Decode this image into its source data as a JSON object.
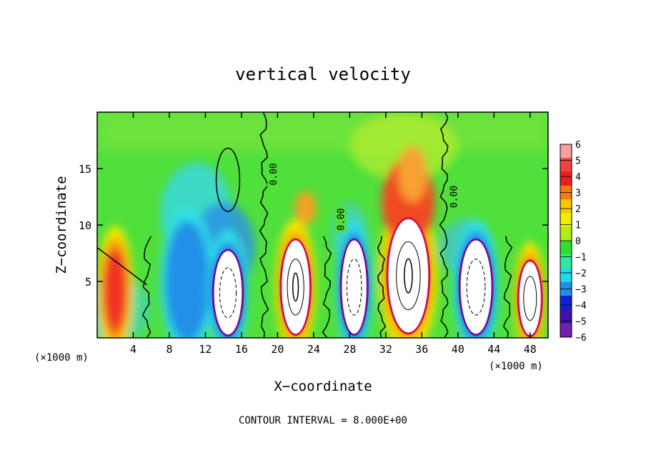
{
  "chart_data": {
    "type": "heatmap",
    "title": "vertical velocity",
    "xlabel": "X−coordinate",
    "ylabel": "Z−coordinate",
    "x_unit_label": "(×1000 m)",
    "z_unit_label": "(×1000 m)",
    "footnote": "CONTOUR INTERVAL = 8.000E+00",
    "xlim": [
      0,
      50
    ],
    "ylim": [
      0,
      20
    ],
    "x_ticks": [
      "4",
      "8",
      "12",
      "16",
      "20",
      "24",
      "28",
      "32",
      "36",
      "40",
      "44",
      "48"
    ],
    "x_tick_values": [
      4,
      8,
      12,
      16,
      20,
      24,
      28,
      32,
      36,
      40,
      44,
      48
    ],
    "y_ticks": [
      "5",
      "10",
      "15"
    ],
    "y_tick_values": [
      5,
      10,
      15
    ],
    "contour_labels": [
      {
        "text": "0.00",
        "x": 19.5,
        "z": 14.5,
        "rotation": -90
      },
      {
        "text": "0.00",
        "x": 27.0,
        "z": 10.5,
        "rotation": -90
      },
      {
        "text": "0.00",
        "x": 39.5,
        "z": 12.5,
        "rotation": -90
      }
    ],
    "colorbar": {
      "labels": [
        "6",
        "5",
        "4",
        "3",
        "2",
        "1",
        "0",
        "−1",
        "−2",
        "−3",
        "−4",
        "−5",
        "−6"
      ],
      "colors": [
        "#f4a0a0",
        "#f04040",
        "#e82020",
        "#f47a10",
        "#f8c800",
        "#f0f000",
        "#b0ee10",
        "#30dd30",
        "#30e8a0",
        "#20d8e8",
        "#1f8ee8",
        "#1020d8",
        "#4010a8",
        "#7020b0"
      ]
    },
    "cells": [
      {
        "x": 2,
        "w": 4,
        "type": "updraft",
        "core_z": 4.2,
        "amp": 5.0
      },
      {
        "x": 10,
        "w": 6,
        "type": "weak_down",
        "core_z": 5.0,
        "amp": -3.0
      },
      {
        "x": 14.5,
        "w": 4.5,
        "type": "downdraft",
        "core_z": 4.0,
        "amp": -6.0
      },
      {
        "x": 22,
        "w": 4.5,
        "type": "updraft",
        "core_z": 4.5,
        "amp": 7.0
      },
      {
        "x": 28.5,
        "w": 4,
        "type": "downdraft",
        "core_z": 4.5,
        "amp": -6.0
      },
      {
        "x": 34.5,
        "w": 6.5,
        "type": "updraft",
        "core_z": 5.5,
        "amp": 7.5
      },
      {
        "x": 42,
        "w": 5,
        "type": "downdraft",
        "core_z": 4.5,
        "amp": -6.0
      },
      {
        "x": 48,
        "w": 3.5,
        "type": "updraft",
        "core_z": 3.5,
        "amp": 6.5
      }
    ]
  }
}
